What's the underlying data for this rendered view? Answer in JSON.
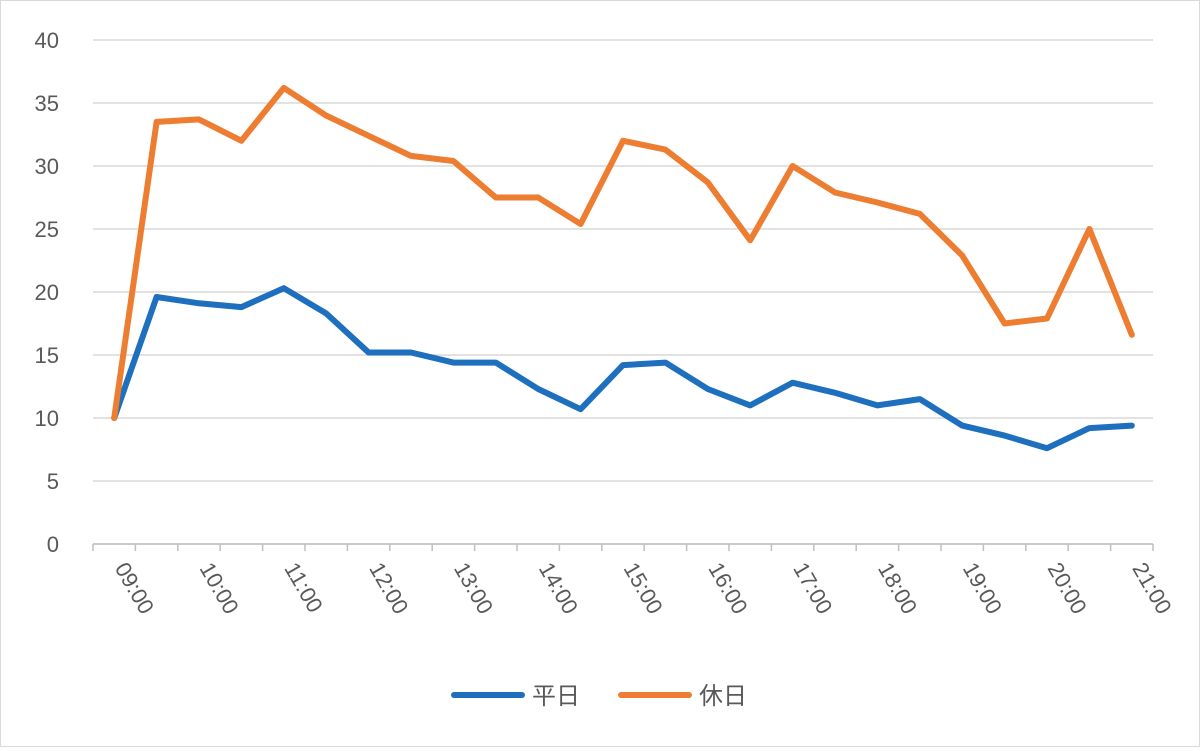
{
  "chart_data": {
    "type": "line",
    "categories": [
      "09:00",
      "",
      "10:00",
      "",
      "11:00",
      "",
      "12:00",
      "",
      "13:00",
      "",
      "14:00",
      "",
      "15:00",
      "",
      "16:00",
      "",
      "17:00",
      "",
      "18:00",
      "",
      "19:00",
      "",
      "20:00",
      "",
      "21:00"
    ],
    "series": [
      {
        "name": "平日",
        "color": "#1f6fbf",
        "values": [
          10,
          19.6,
          19.1,
          18.8,
          20.3,
          18.3,
          15.2,
          15.2,
          14.4,
          14.4,
          12.3,
          10.7,
          14.2,
          14.4,
          12.3,
          11.0,
          12.8,
          12.0,
          11.0,
          11.5,
          9.4,
          8.6,
          7.6,
          9.2,
          9.4
        ]
      },
      {
        "name": "休日",
        "color": "#ed7d31",
        "values": [
          10,
          33.5,
          33.7,
          32.0,
          36.2,
          34.0,
          32.4,
          30.8,
          30.4,
          27.5,
          27.5,
          25.4,
          32.0,
          31.3,
          28.7,
          24.1,
          30.0,
          27.9,
          27.1,
          26.2,
          22.9,
          17.5,
          17.9,
          25.0,
          16.6
        ]
      }
    ],
    "yticks": [
      "0",
      "5",
      "10",
      "15",
      "20",
      "25",
      "30",
      "35",
      "40"
    ],
    "ylim": [
      0,
      40
    ],
    "grid": true,
    "legend_position": "bottom"
  }
}
